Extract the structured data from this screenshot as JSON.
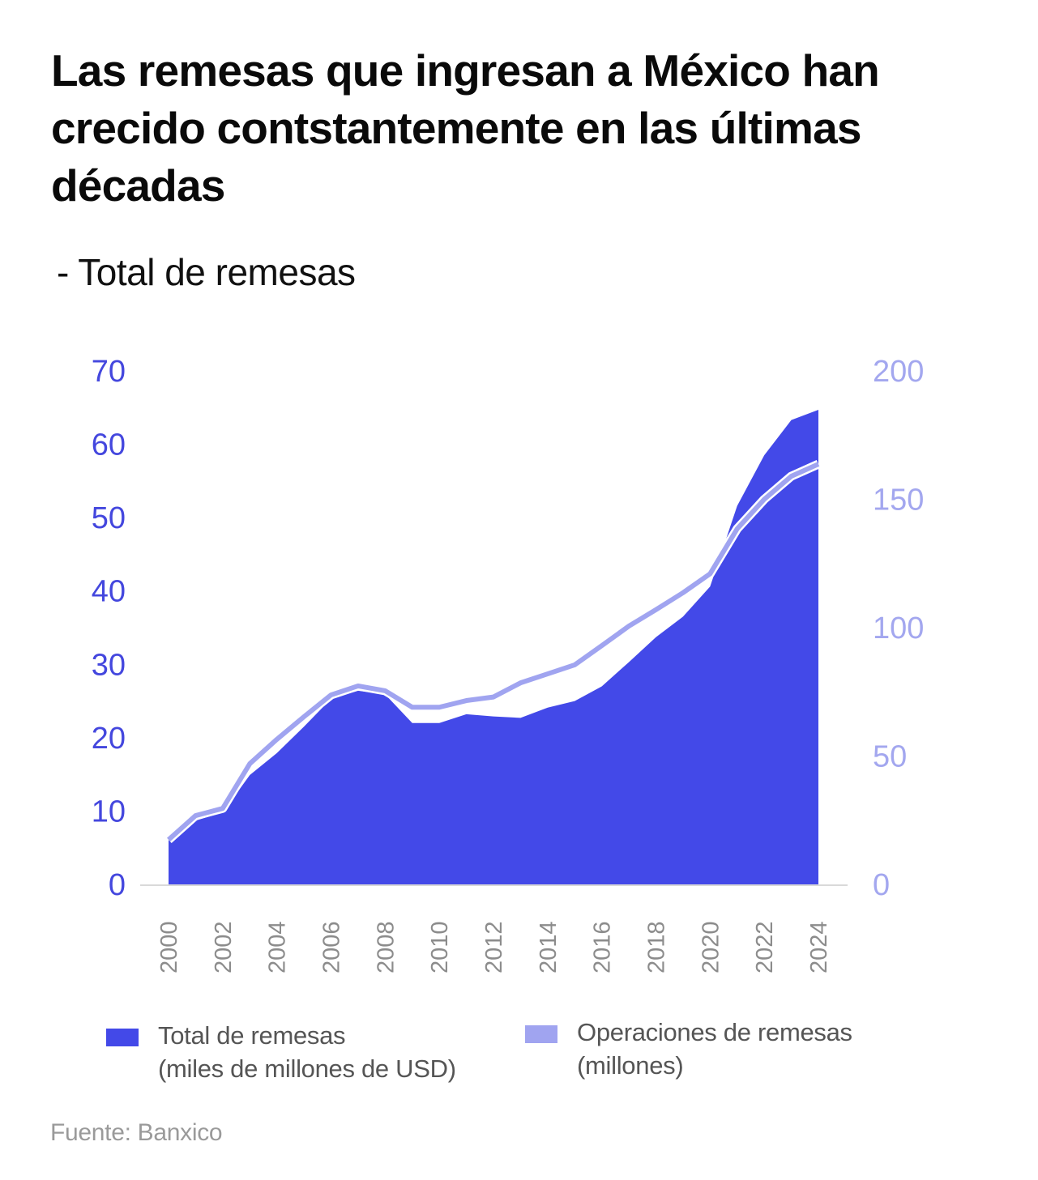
{
  "header": {
    "title": "Las remesas que ingresan a México han crecido contstantemente en las últimas décadas",
    "subtitle": "- Total de remesas"
  },
  "colors": {
    "total": "#4349E8",
    "operaciones": "#A0A4F0",
    "left_axis": "#4447DE",
    "right_axis": "#A3A7EF",
    "x_axis_text": "#8C8C8C",
    "baseline": "#D9D9D9"
  },
  "legend": {
    "items": [
      {
        "line1": "Total de remesas",
        "line2": "(miles de millones de USD)",
        "color_key": "total"
      },
      {
        "line1": "Operaciones de remesas",
        "line2": "(millones)",
        "color_key": "operaciones"
      }
    ]
  },
  "source": "Fuente: Banxico",
  "chart_data": {
    "type": "area",
    "title": "Las remesas que ingresan a México han crecido contstantemente en las últimas décadas",
    "subtitle": "- Total de remesas",
    "xlabel": "",
    "x": [
      2000,
      2001,
      2002,
      2003,
      2004,
      2005,
      2006,
      2007,
      2008,
      2009,
      2010,
      2011,
      2012,
      2013,
      2014,
      2015,
      2016,
      2017,
      2018,
      2019,
      2020,
      2021,
      2022,
      2023,
      2024
    ],
    "x_tick_labels": [
      "2000",
      "2002",
      "2004",
      "2006",
      "2008",
      "2010",
      "2012",
      "2014",
      "2016",
      "2018",
      "2020",
      "2022",
      "2024"
    ],
    "series": [
      {
        "name": "Total de remesas (miles de millones de USD)",
        "type": "area",
        "axis": "left",
        "values": [
          6.0,
          8.7,
          9.8,
          14.9,
          17.9,
          21.5,
          25.3,
          26.4,
          25.9,
          22.0,
          22.0,
          23.2,
          22.9,
          22.7,
          24.1,
          25.0,
          27.0,
          30.3,
          33.7,
          36.5,
          40.6,
          51.6,
          58.5,
          63.3,
          64.7
        ]
      },
      {
        "name": "Operaciones de remesas (millones)",
        "type": "line",
        "axis": "right",
        "values": [
          17.4,
          26.8,
          29.6,
          47.0,
          56.5,
          65.3,
          73.8,
          77.3,
          75.4,
          69.0,
          69.0,
          71.6,
          73.0,
          78.5,
          82.0,
          85.5,
          93.0,
          100.6,
          107.0,
          113.6,
          121.0,
          138.5,
          150.0,
          159.0,
          163.7
        ]
      }
    ],
    "y_left": {
      "label": "",
      "ylim": [
        0,
        70
      ],
      "ticks": [
        0,
        10,
        20,
        30,
        40,
        50,
        60,
        70
      ]
    },
    "y_right": {
      "label": "",
      "ylim": [
        0,
        200
      ],
      "ticks": [
        0,
        50,
        100,
        150,
        200
      ]
    },
    "grid": false,
    "legend_position": "bottom"
  }
}
